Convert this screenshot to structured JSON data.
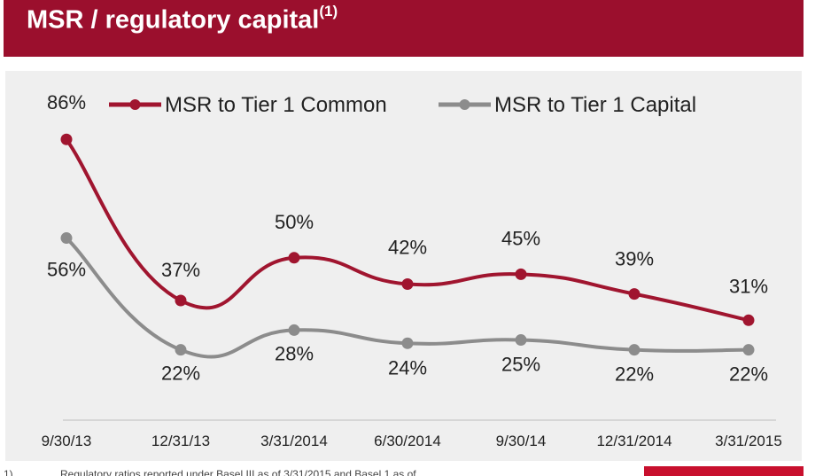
{
  "header": {
    "title": "MSR / regulatory capital",
    "title_superscript": "(1)"
  },
  "colors": {
    "header_bg": "#9b0f2d",
    "series_common": "#a0152f",
    "series_capital": "#8c8c8c",
    "panel_bg": "#efefef"
  },
  "chart_data": {
    "type": "line",
    "categories": [
      "9/30/13",
      "12/31/13",
      "3/31/2014",
      "6/30/2014",
      "9/30/14",
      "12/31/2014",
      "3/31/2015"
    ],
    "series": [
      {
        "name": "MSR to Tier 1 Common",
        "values": [
          86,
          37,
          50,
          42,
          45,
          39,
          31
        ],
        "labels": [
          "86%",
          "37%",
          "50%",
          "42%",
          "45%",
          "39%",
          "31%"
        ]
      },
      {
        "name": "MSR to Tier 1 Capital",
        "values": [
          56,
          22,
          28,
          24,
          25,
          22,
          22
        ],
        "labels": [
          "56%",
          "22%",
          "28%",
          "24%",
          "25%",
          "22%",
          "22%"
        ]
      }
    ],
    "legend_position": "top",
    "grid": false,
    "smooth": true
  },
  "footnote": {
    "marker": "1)",
    "text": "Regulatory ratios reported under Basel III as of 3/31/2015 and Basel 1 as of"
  },
  "logo": "logo-mark"
}
